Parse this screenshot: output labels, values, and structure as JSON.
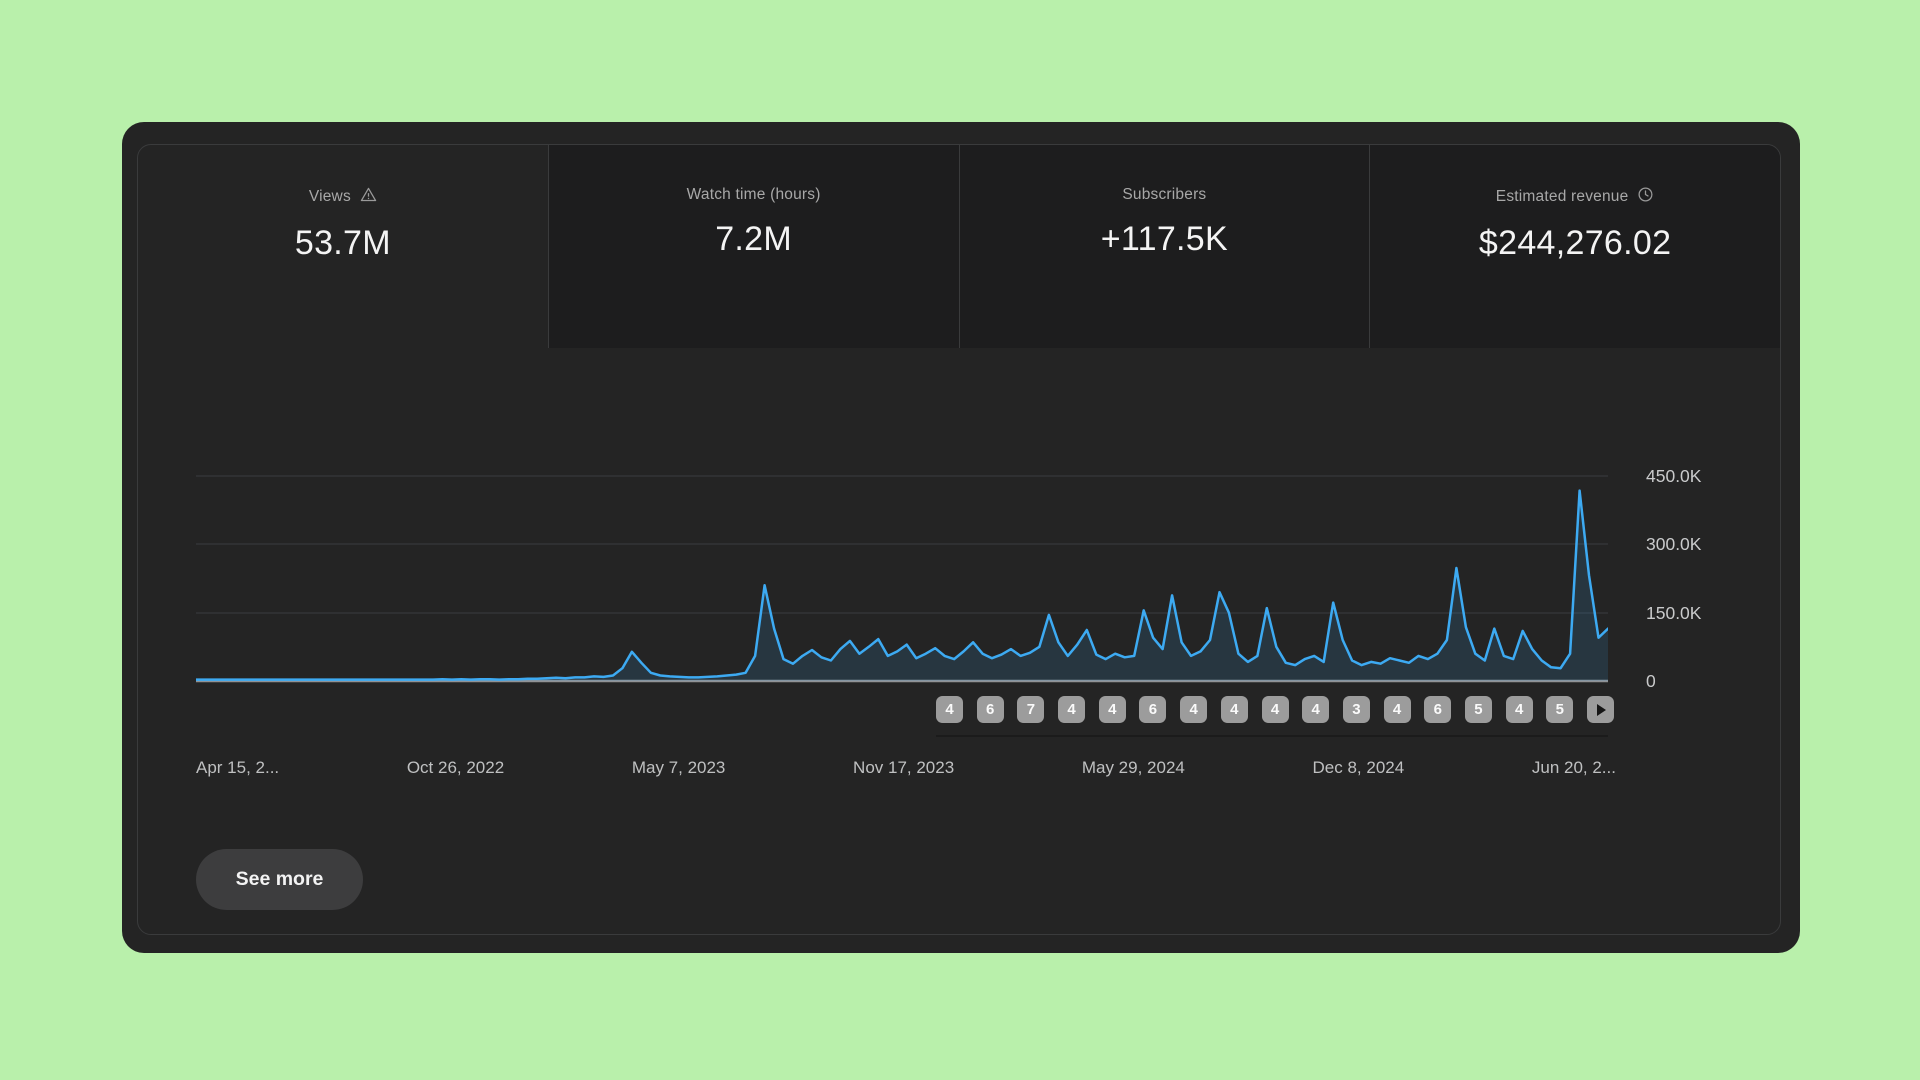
{
  "page": {
    "background": "#b9f0ab",
    "surface": "#242424",
    "accent": "#3daaf2"
  },
  "metrics": [
    {
      "label": "Views",
      "value": "53.7M",
      "icon": "warning",
      "selected": true
    },
    {
      "label": "Watch time (hours)",
      "value": "7.2M",
      "icon": "",
      "selected": false
    },
    {
      "label": "Subscribers",
      "value": "+117.5K",
      "icon": "",
      "selected": false
    },
    {
      "label": "Estimated revenue",
      "value": "$244,276.02",
      "icon": "clock",
      "selected": false
    }
  ],
  "chart_data": {
    "type": "area",
    "series_name": "Views",
    "unit": "thousand views",
    "ylim": [
      0,
      450
    ],
    "grid": true,
    "legend": false,
    "line_color": "#3daaf2",
    "y_ticks": [
      "450.0K",
      "300.0K",
      "150.0K",
      "0"
    ],
    "x_ticks": [
      "Apr 15, 2...",
      "Oct 26, 2022",
      "May 7, 2023",
      "Nov 17, 2023",
      "May 29, 2024",
      "Dec 8, 2024",
      "Jun 20, 2..."
    ],
    "values": [
      3,
      3,
      3,
      3,
      3,
      3,
      3,
      3,
      3,
      3,
      3,
      3,
      3,
      3,
      3,
      3,
      3,
      3,
      3,
      3,
      3,
      3,
      3,
      3,
      3,
      3,
      4,
      3,
      4,
      3,
      4,
      4,
      3,
      4,
      4,
      5,
      5,
      6,
      7,
      6,
      8,
      8,
      10,
      9,
      12,
      28,
      64,
      40,
      18,
      12,
      10,
      9,
      8,
      8,
      9,
      10,
      12,
      14,
      18,
      55,
      210,
      115,
      48,
      38,
      55,
      68,
      52,
      45,
      70,
      88,
      60,
      75,
      92,
      55,
      65,
      80,
      50,
      60,
      72,
      55,
      48,
      65,
      85,
      60,
      50,
      58,
      70,
      55,
      62,
      75,
      145,
      85,
      55,
      80,
      112,
      58,
      48,
      60,
      52,
      55,
      155,
      95,
      70,
      188,
      85,
      55,
      65,
      90,
      195,
      150,
      60,
      42,
      55,
      160,
      75,
      40,
      35,
      48,
      55,
      42,
      172,
      90,
      45,
      35,
      42,
      38,
      50,
      45,
      40,
      55,
      48,
      60,
      90,
      248,
      118,
      60,
      45,
      115,
      55,
      48,
      110,
      70,
      45,
      30,
      28,
      60,
      418,
      232,
      95,
      115
    ]
  },
  "video_markers": {
    "counts": [
      4,
      6,
      7,
      4,
      4,
      6,
      4,
      4,
      4,
      4,
      3,
      4,
      6,
      5,
      4,
      5
    ],
    "next_button": "play"
  },
  "see_more": {
    "label": "See more"
  }
}
